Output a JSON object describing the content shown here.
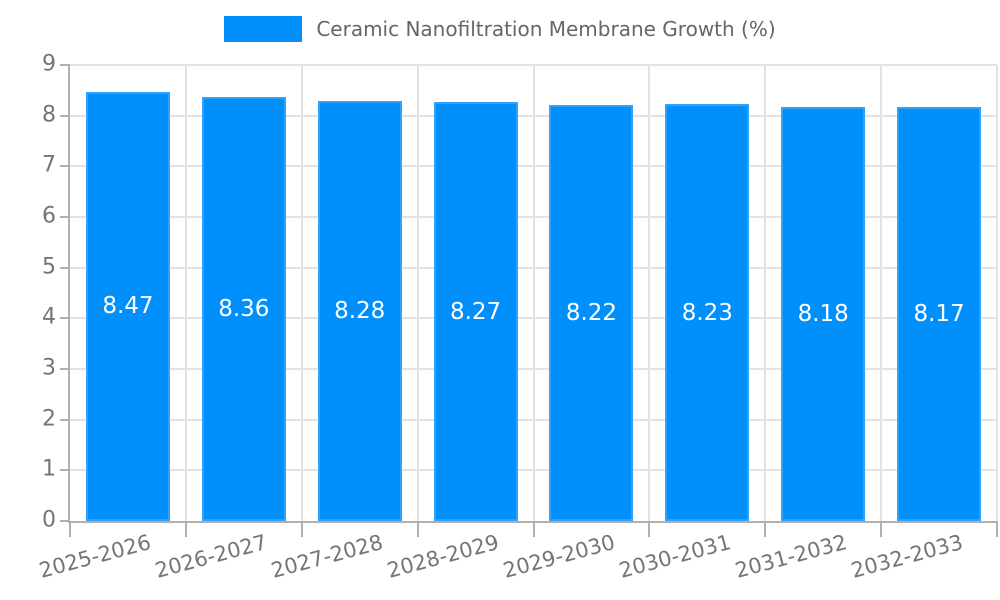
{
  "legend": {
    "label": "Ceramic Nanofiltration Membrane Growth (%)"
  },
  "chart_data": {
    "type": "bar",
    "title": "",
    "categories": [
      "2025-2026",
      "2026-2027",
      "2027-2028",
      "2028-2029",
      "2029-2030",
      "2030-2031",
      "2031-2032",
      "2032-2033"
    ],
    "series": [
      {
        "name": "Ceramic Nanofiltration Membrane Growth (%)",
        "values": [
          8.47,
          8.36,
          8.28,
          8.27,
          8.22,
          8.23,
          8.18,
          8.17
        ]
      }
    ],
    "value_labels": [
      "8.47",
      "8.36",
      "8.28",
      "8.27",
      "8.22",
      "8.23",
      "8.18",
      "8.17"
    ],
    "xlabel": "",
    "ylabel": "",
    "ylim": [
      0,
      9
    ],
    "yticks": [
      0,
      1,
      2,
      3,
      4,
      5,
      6,
      7,
      8,
      9
    ],
    "grid": true,
    "legend_position": "top",
    "x_label_rotation_deg": -15,
    "colors": {
      "bar": "#008FFB",
      "grid": "#e3e3e3",
      "axis_line": "#b0b0b0",
      "axis_text": "#757575",
      "legend_text": "#666666",
      "value_label": "#ffffff"
    }
  }
}
